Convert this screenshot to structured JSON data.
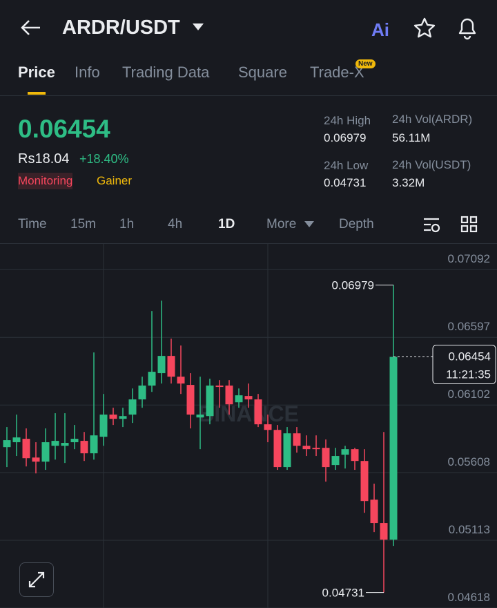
{
  "header": {
    "pair": "ARDR/USDT",
    "ai": "Ai"
  },
  "tabs": [
    "Price",
    "Info",
    "Trading Data",
    "Square",
    "Trade-X"
  ],
  "new_badge": "New",
  "price": {
    "last": "0.06454",
    "fiat": "Rs18.04",
    "change": "+18.40%",
    "tags": [
      "Monitoring",
      "Gainer"
    ]
  },
  "stats": [
    {
      "label": "24h High",
      "value": "0.06979"
    },
    {
      "label": "24h Vol(ARDR)",
      "value": "56.11M"
    },
    {
      "label": "24h Low",
      "value": "0.04731"
    },
    {
      "label": "24h Vol(USDT)",
      "value": "3.32M"
    }
  ],
  "intervals": [
    "Time",
    "15m",
    "1h",
    "4h",
    "1D",
    "More",
    "Depth"
  ],
  "chart_data": {
    "type": "candlestick",
    "watermark": "BINANCE",
    "last_time": "11:21:35",
    "up_color": "#2ebd85",
    "down_color": "#f6465d",
    "ylim": [
      0.04618,
      0.07285
    ],
    "yticks": [
      0.07092,
      0.06597,
      0.06102,
      0.05608,
      0.05113,
      0.04618
    ],
    "open": [
      0.05794,
      0.0583,
      0.05855,
      0.05718,
      0.05688,
      0.05804,
      0.05804,
      0.0583,
      0.0584,
      0.05749,
      0.0587,
      0.06032,
      0.06001,
      0.06032,
      0.06143,
      0.06244,
      0.06335,
      0.06461,
      0.06309,
      0.06249,
      0.06011,
      0.06021,
      0.06244,
      0.06244,
      0.06122,
      0.06168,
      0.06143,
      0.05961,
      0.0592,
      0.05648,
      0.05895,
      0.05804,
      0.05789,
      0.05789,
      0.05663,
      0.05739,
      0.05779,
      0.05693,
      0.0541,
      0.05239,
      0.05118
    ],
    "high": [
      0.05941,
      0.06032,
      0.05931,
      0.0583,
      0.05931,
      0.06042,
      0.06042,
      0.05956,
      0.05905,
      0.06486,
      0.06183,
      0.06082,
      0.06082,
      0.06223,
      0.06309,
      0.06789,
      0.06865,
      0.06587,
      0.06537,
      0.06335,
      0.06309,
      0.06294,
      0.06284,
      0.06284,
      0.06223,
      0.06259,
      0.06183,
      0.06032,
      0.05956,
      0.05941,
      0.05941,
      0.0588,
      0.0588,
      0.0585,
      0.05789,
      0.05804,
      0.05789,
      0.05779,
      0.05527,
      0.05905,
      0.06979
    ],
    "low": [
      0.05648,
      0.05729,
      0.05653,
      0.05602,
      0.05628,
      0.05703,
      0.05678,
      0.05779,
      0.05693,
      0.05703,
      0.05804,
      0.05956,
      0.05941,
      0.05971,
      0.06082,
      0.06198,
      0.06259,
      0.06259,
      0.06183,
      0.05931,
      0.05779,
      0.05961,
      0.06082,
      0.06032,
      0.06082,
      0.06082,
      0.05941,
      0.0583,
      0.05628,
      0.05628,
      0.05754,
      0.05729,
      0.05729,
      0.05542,
      0.05628,
      0.05638,
      0.05628,
      0.05314,
      0.05173,
      0.04731,
      0.05072
    ],
    "close": [
      0.05845,
      0.05865,
      0.05713,
      0.05688,
      0.0583,
      0.0584,
      0.05825,
      0.05855,
      0.05749,
      0.0588,
      0.06032,
      0.06001,
      0.06021,
      0.06143,
      0.06244,
      0.06345,
      0.06461,
      0.06309,
      0.06259,
      0.06032,
      0.06032,
      0.06244,
      0.06234,
      0.06107,
      0.06173,
      0.06143,
      0.05961,
      0.0592,
      0.05648,
      0.05895,
      0.05804,
      0.05779,
      0.05779,
      0.05648,
      0.05729,
      0.05779,
      0.05693,
      0.054,
      0.05239,
      0.05118,
      0.06454
    ]
  }
}
